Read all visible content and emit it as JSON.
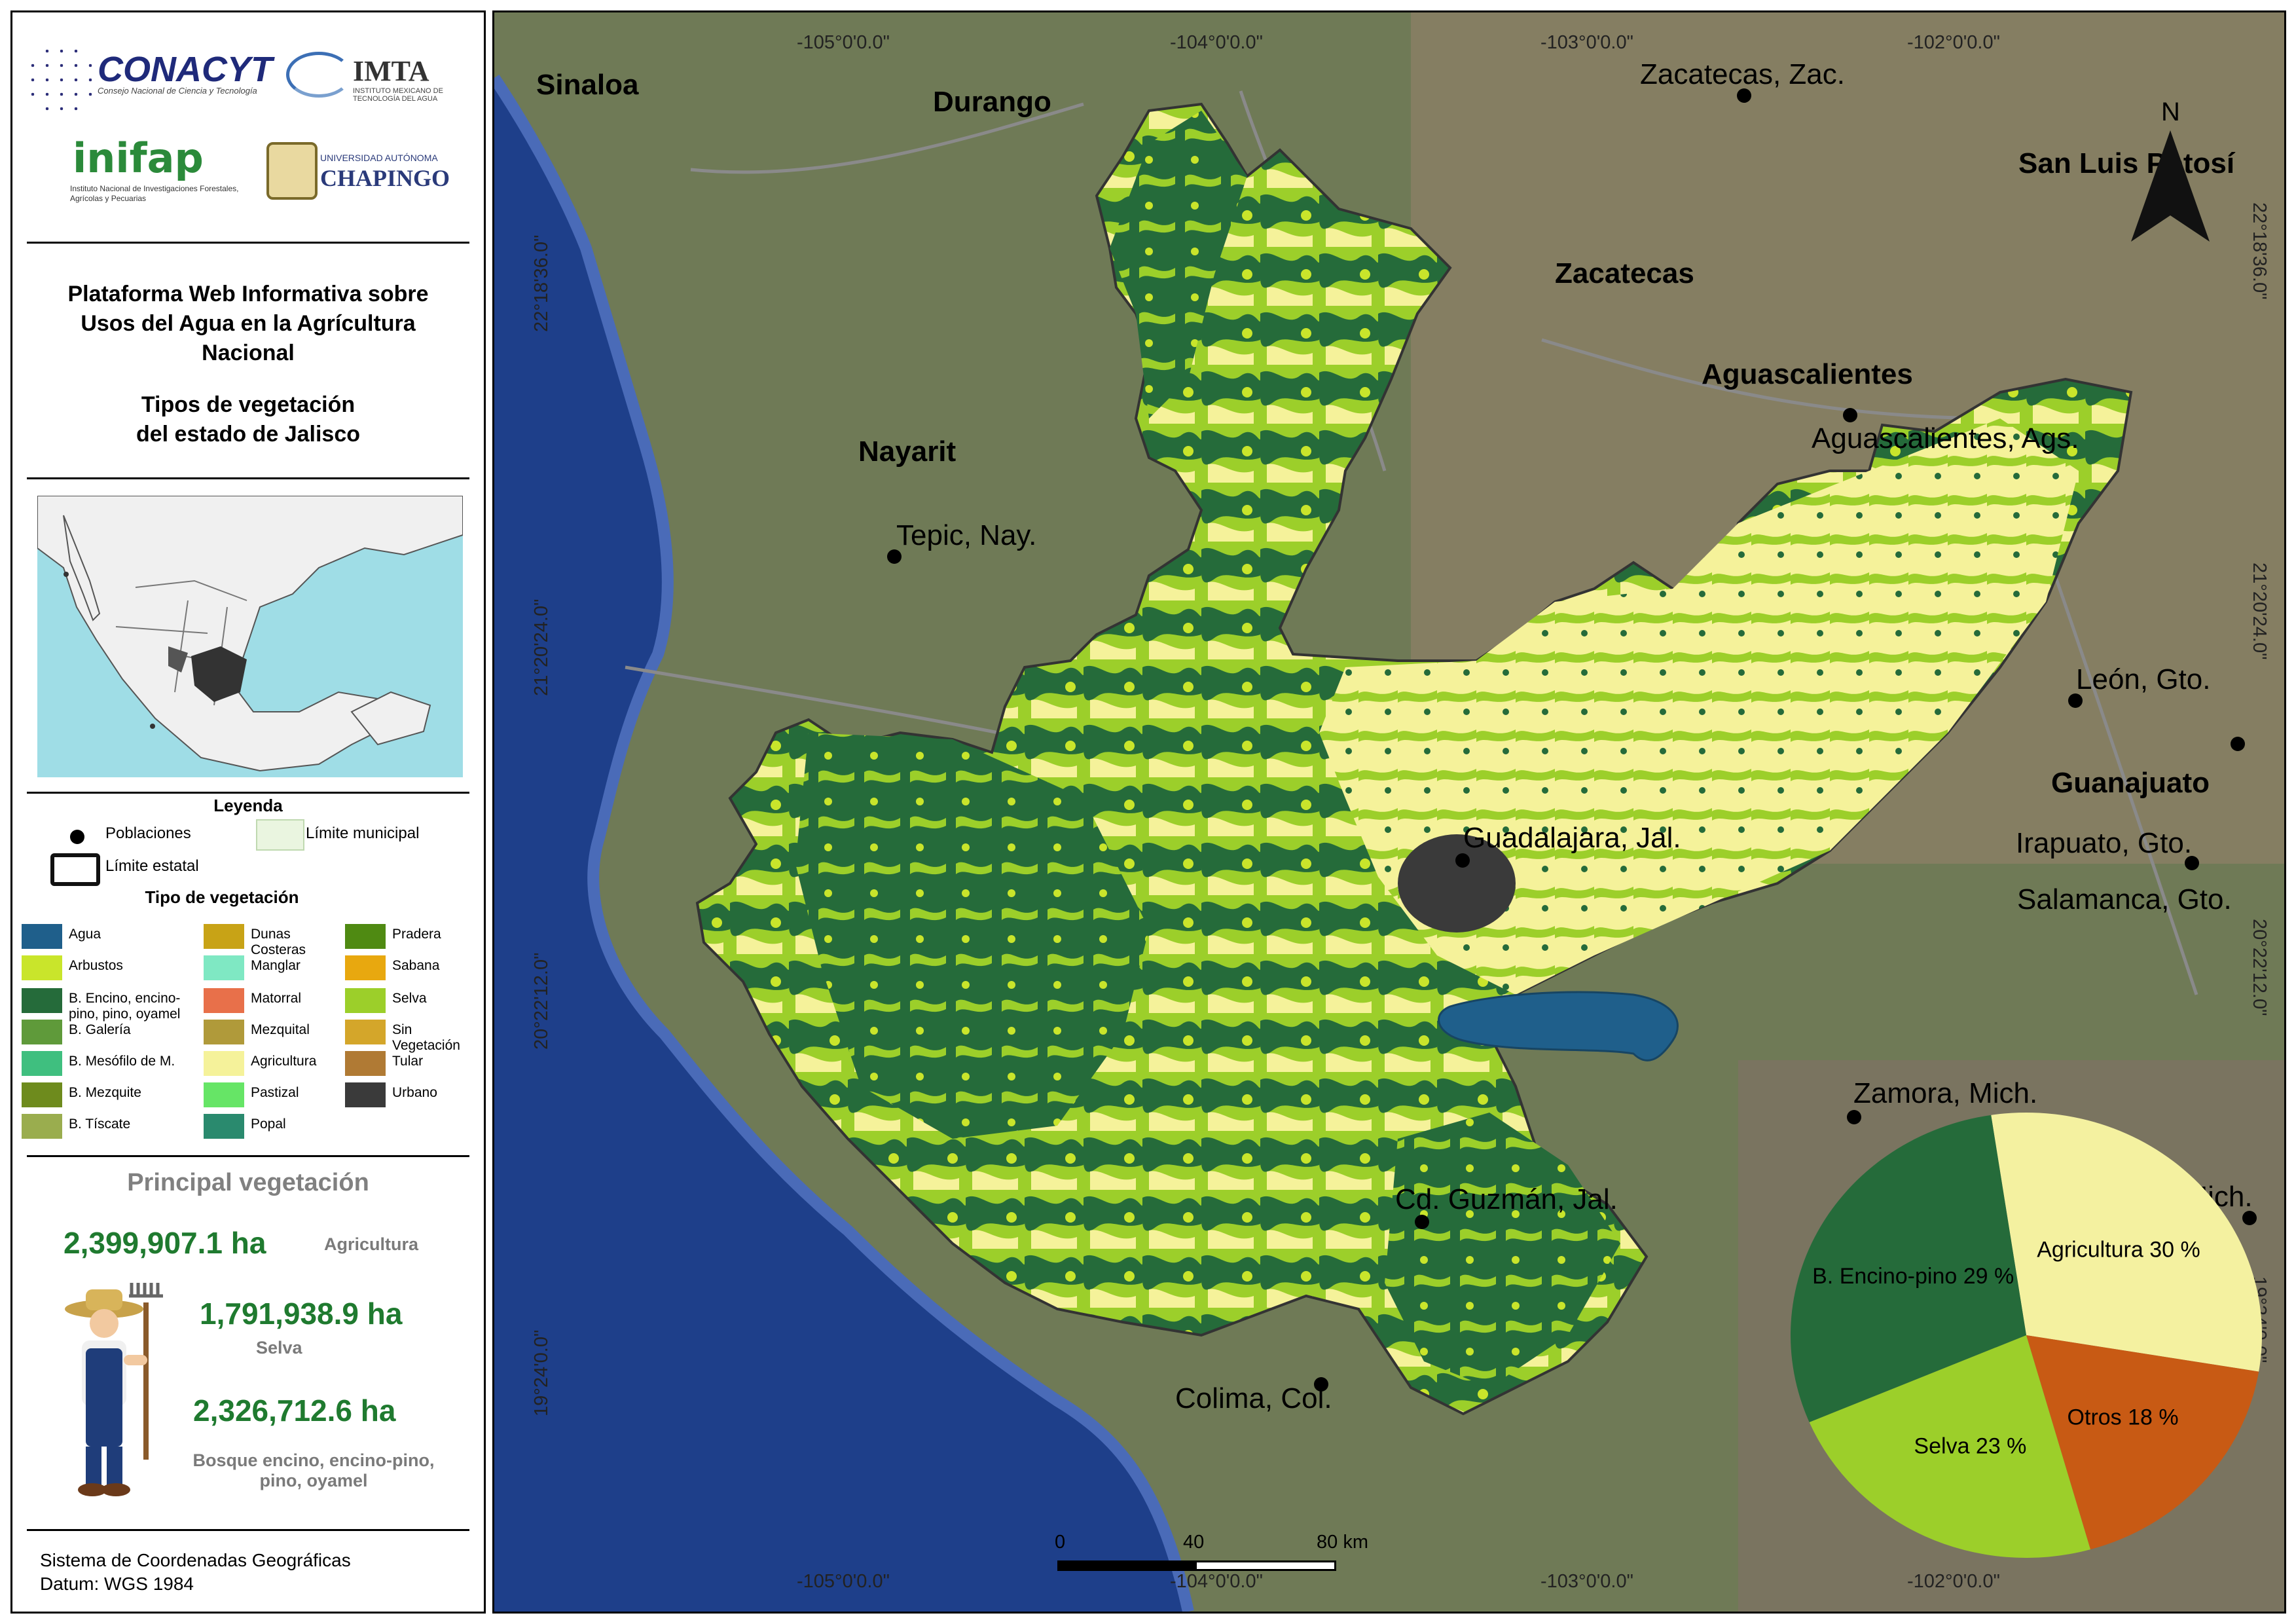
{
  "logos": {
    "conacyt": "CONACYT",
    "conacyt_sub": "Consejo Nacional de Ciencia y Tecnología",
    "imta": "IMTA",
    "imta_sub": "INSTITUTO MEXICANO DE TECNOLOGÍA DEL AGUA",
    "inifap": "inifap",
    "inifap_sub": "Instituto Nacional de Investigaciones Forestales, Agrícolas y Pecuarias",
    "chapingo_line1": "UNIVERSIDAD AUTÓNOMA",
    "chapingo_line2": "CHAPINGO"
  },
  "title": {
    "line1": "Plataforma Web Informativa sobre",
    "line2": "Usos del Agua en la Agrícultura",
    "line3": "Nacional",
    "line4": "Tipos de vegetación",
    "line5": "del estado de Jalisco"
  },
  "legend": {
    "title": "Leyenda",
    "poblaciones": "Poblaciones",
    "limite_municipal": "Límite municipal",
    "limite_estatal": "Límite estatal",
    "tipo_title": "Tipo de vegetación",
    "items": [
      {
        "label": "Agua",
        "color": "#1f5f8b"
      },
      {
        "label": "Arbustos",
        "color": "#c9e52b"
      },
      {
        "label": "B. Encino, encino-pino, pino, oyamel",
        "color": "#256b3a"
      },
      {
        "label": "B. Galería",
        "color": "#5f9a3a"
      },
      {
        "label": "B. Mesófilo de M.",
        "color": "#3fbf7f"
      },
      {
        "label": "B. Mezquite",
        "color": "#6e8b1d"
      },
      {
        "label": "B. Tíscate",
        "color": "#9aad4e"
      },
      {
        "label": "Dunas Costeras",
        "color": "#c8a316"
      },
      {
        "label": "Manglar",
        "color": "#7fe8c3"
      },
      {
        "label": "Matorral",
        "color": "#e8704a"
      },
      {
        "label": "Mezquital",
        "color": "#b09a3a"
      },
      {
        "label": "Agricultura",
        "color": "#f5f29a"
      },
      {
        "label": "Pastizal",
        "color": "#66e566"
      },
      {
        "label": "Popal",
        "color": "#2a8a6e"
      },
      {
        "label": "Pradera",
        "color": "#4f8a12"
      },
      {
        "label": "Sabana",
        "color": "#e8a80f"
      },
      {
        "label": "Selva",
        "color": "#9ccf2a"
      },
      {
        "label": "Sin Vegetación",
        "color": "#d4a62a"
      },
      {
        "label": "Tular",
        "color": "#b07a34"
      },
      {
        "label": "Urbano",
        "color": "#3a3a3a"
      }
    ]
  },
  "principal": {
    "title": "Principal vegetación",
    "agri_value": "2,399,907.1 ha",
    "agri_label": "Agricultura",
    "selva_value": "1,791,938.9 ha",
    "selva_label": "Selva",
    "bosque_value": "2,326,712.6 ha",
    "bosque_label1": "Bosque encino, encino-pino,",
    "bosque_label2": "pino, oyamel"
  },
  "crs": {
    "line1": "Sistema de Coordenadas Geográficas",
    "line2": "Datum: WGS 1984"
  },
  "map": {
    "states": [
      "Sinaloa",
      "Durango",
      "Zacatecas",
      "Aguascalientes",
      "Nayarit",
      "Guanajuato",
      "San Luis Potosí"
    ],
    "cities": [
      "Zacatecas, Zac.",
      "Aguascalientes, Ags.",
      "Tepic, Nay.",
      "León, Gto.",
      "Guadalajara, Jal.",
      "Irapuato, Gto.",
      "Salamanca, Gto.",
      "Zamora, Mich.",
      "Cd. Guzmán, Jal.",
      "Colima, Col.",
      "lia, Mich."
    ],
    "coords_top": [
      "-105°0'0.0\"",
      "-104°0'0.0\"",
      "-103°0'0.0\"",
      "-102°0'0.0\""
    ],
    "coords_bottom": [
      "-105°0'0.0\"",
      "-104°0'0.0\"",
      "-103°0'0.0\"",
      "-102°0'0.0\""
    ],
    "coords_left": [
      "22°18'36.0\"",
      "21°20'24.0\"",
      "20°22'12.0\"",
      "19°24'0.0\""
    ],
    "coords_right": [
      "22°18'36.0\"",
      "21°20'24.0\"",
      "20°22'12.0\"",
      "19°24'0.0\""
    ],
    "north": "N",
    "scale": {
      "t0": "0",
      "t1": "40",
      "t2": "80 km"
    }
  },
  "chart_data": {
    "type": "pie",
    "labels": [
      "Agricultura",
      "B. Encino-pino",
      "Selva",
      "Otros"
    ],
    "values": [
      30,
      29,
      23,
      18
    ],
    "value_labels": [
      "Agricultura 30 %",
      "B. Encino-pino 29 %",
      "Selva 23 %",
      "Otros 18 %"
    ],
    "colors": [
      "#f4f1a0",
      "#256b3a",
      "#9ccf2a",
      "#c85a14"
    ]
  }
}
